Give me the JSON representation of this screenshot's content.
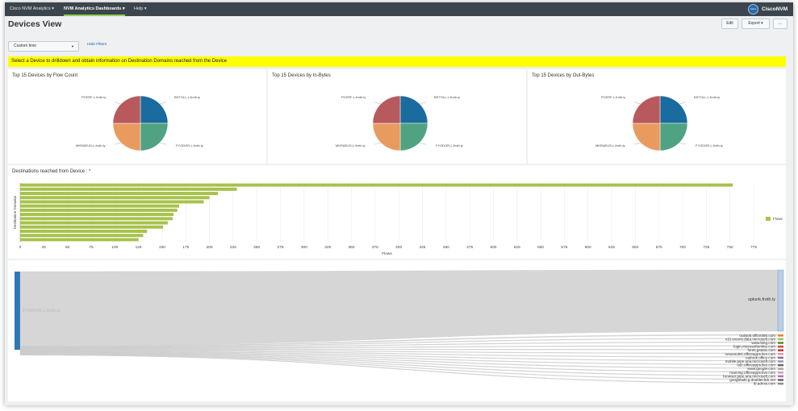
{
  "topnav": {
    "items": [
      {
        "label": "Cisco NVM Analytics ▾"
      },
      {
        "label": "NVM Analytics Dashboards ▾"
      },
      {
        "label": "Help ▾"
      }
    ],
    "brand_badge": "Cisco",
    "brand_name": "CiscoNVM"
  },
  "page": {
    "title": "Devices View",
    "edit_label": "Edit",
    "export_label": "Export ▾",
    "more_label": "..."
  },
  "filters": {
    "time_value": "Custom time",
    "hide_filters_label": "Hide Filters"
  },
  "banner": {
    "text": "Select a Device to drilldown and obtain information on Destination Domains reached from the Device"
  },
  "colors": {
    "pie": [
      "#1a6b9e",
      "#4fa383",
      "#e99a5e",
      "#b85a5d"
    ],
    "bar": "#a6c24c",
    "sankey_source": "#2e78b7",
    "sankey_target": "#b8cde6",
    "sankey_link": "#cfcfcf"
  },
  "pies": [
    {
      "title": "Top 15 Devices by Flow Count",
      "chart_data": {
        "type": "pie",
        "labels": [
          "BSTOLL-L.froth.ly",
          "FYODOR-L.froth.ly",
          "MKRAEUS-L.froth.ly",
          "PCERF-L.froth.ly"
        ],
        "values": [
          25,
          25,
          25,
          25
        ]
      }
    },
    {
      "title": "Top 15 Devices by In-Bytes",
      "chart_data": {
        "type": "pie",
        "labels": [
          "BSTOLL-L.froth.ly",
          "FYODOR-L.froth.ly",
          "MKRAEUS-L.froth.ly",
          "PCERF-L.froth.ly"
        ],
        "values": [
          25,
          25,
          25,
          25
        ]
      }
    },
    {
      "title": "Top 15 Devices by Out-Bytes",
      "chart_data": {
        "type": "pie",
        "labels": [
          "BSTOLL-L.froth.ly",
          "FYODOR-L.froth.ly",
          "MKRAEUS-L.froth.ly",
          "PCERF-L.froth.ly"
        ],
        "values": [
          25,
          25,
          25,
          25
        ]
      }
    }
  ],
  "bar_chart": {
    "title": "Destinations reached from Device : *",
    "chart_data": {
      "type": "bar",
      "orientation": "horizontal",
      "xlabel": "Flows",
      "ylabel": "Destination Domains",
      "xlim": [
        0,
        775
      ],
      "xticks": [
        0,
        25,
        50,
        75,
        100,
        125,
        150,
        175,
        200,
        225,
        250,
        275,
        300,
        325,
        350,
        375,
        400,
        425,
        450,
        475,
        500,
        525,
        550,
        575,
        600,
        625,
        650,
        675,
        700,
        725,
        750,
        775
      ],
      "legend": "right",
      "series": [
        {
          "name": "Flows",
          "values": [
            753,
            229,
            209,
            200,
            194,
            168,
            166,
            162,
            161,
            156,
            151,
            134,
            130,
            125
          ]
        }
      ]
    }
  },
  "sankey": {
    "chart_data": {
      "type": "sankey",
      "source": "FYODOR-L.froth.ly",
      "targets": [
        {
          "label": "splunk.froth.ly",
          "value": 753,
          "color": "#b8cde6"
        },
        {
          "label": "outlook.office365.com",
          "value": 9,
          "color": "#e8843a"
        },
        {
          "label": "v10.events.data.microsoft.com",
          "value": 4,
          "color": "#a6c24c"
        },
        {
          "label": "www.bing.com",
          "value": 3,
          "color": "#5b8c3a"
        },
        {
          "label": "login.microsoftonline.com",
          "value": 2,
          "color": "#d04b3c"
        },
        {
          "label": "fonts.gstatic.com",
          "value": 2,
          "color": "#c53b45"
        },
        {
          "label": "nexusrules.officeapps.live.com",
          "value": 2,
          "color": "#e59aa5"
        },
        {
          "label": "outlook.office.com",
          "value": 2,
          "color": "#8e6bb0"
        },
        {
          "label": "mobile.pipe.aria.microsoft.com",
          "value": 2,
          "color": "#9a9a9a"
        },
        {
          "label": "odc.officeapps.live.com",
          "value": 2,
          "color": "#6a6a6a"
        },
        {
          "label": "www.google.com",
          "value": 2,
          "color": "#a8a8a8"
        },
        {
          "label": "roaming.officeapps.live.com",
          "value": 2,
          "color": "#c9a0c4"
        },
        {
          "label": "browser.pipe.aria.microsoft.com",
          "value": 2,
          "color": "#b07aa8"
        },
        {
          "label": "googleads.g.doubleclick.net",
          "value": 2,
          "color": "#6d6d6d"
        },
        {
          "label": "ib.adnxs.com",
          "value": 2,
          "color": "#8a8a8a"
        }
      ]
    }
  }
}
